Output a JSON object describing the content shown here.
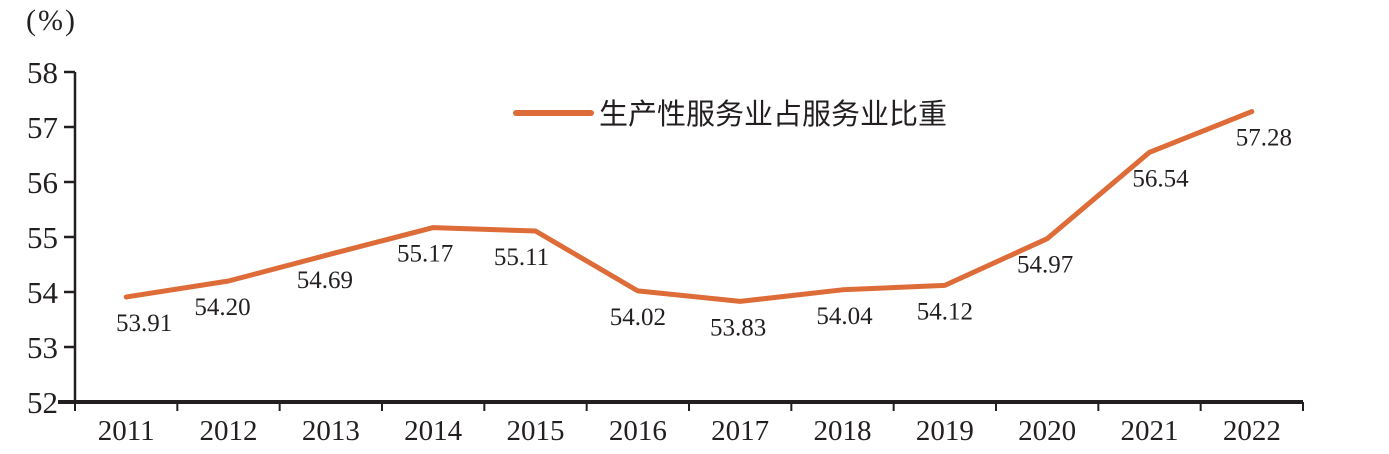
{
  "chart_data": {
    "type": "line",
    "title": "",
    "unit_label": "(%)",
    "legend": "生产性服务业占服务业比重",
    "legend_position": "top-center",
    "categories": [
      "2011",
      "2012",
      "2013",
      "2014",
      "2015",
      "2016",
      "2017",
      "2018",
      "2019",
      "2020",
      "2021",
      "2022"
    ],
    "series": [
      {
        "name": "生产性服务业占服务业比重",
        "values": [
          53.91,
          54.2,
          54.69,
          55.17,
          55.11,
          54.02,
          53.83,
          54.04,
          54.12,
          54.97,
          56.54,
          57.28
        ]
      }
    ],
    "data_labels": [
      "53.91",
      "54.20",
      "54.69",
      "55.17",
      "55.11",
      "54.02",
      "53.83",
      "54.04",
      "54.12",
      "54.97",
      "56.54",
      "57.28"
    ],
    "label_dx": [
      18,
      -6,
      -6,
      -8,
      -14,
      0,
      -2,
      2,
      0,
      -2,
      11,
      12
    ],
    "ylim": [
      52,
      58
    ],
    "yticks": [
      "52",
      "53",
      "54",
      "55",
      "56",
      "57",
      "58"
    ],
    "grid": false,
    "line_color": "#de6c38",
    "axis_color": "#231f20",
    "text_color": "#231f20"
  }
}
